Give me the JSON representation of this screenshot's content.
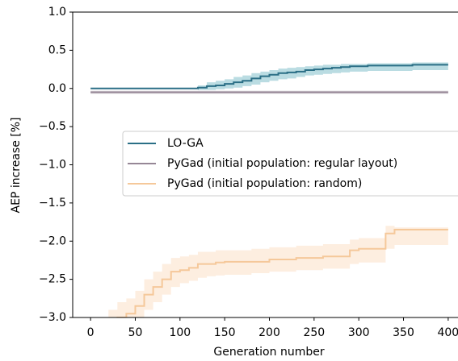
{
  "chart_data": {
    "type": "line",
    "x_label": "Generation number",
    "y_label": "AEP increase [%]",
    "xlim": [
      -20,
      420
    ],
    "ylim": [
      -3.0,
      1.0
    ],
    "xticks": [
      0,
      50,
      100,
      150,
      200,
      250,
      300,
      350,
      400
    ],
    "yticks": [
      {
        "value": 1.0,
        "label": "1.0"
      },
      {
        "value": 0.5,
        "label": "0.5"
      },
      {
        "value": 0.0,
        "label": "0.0"
      },
      {
        "value": -0.5,
        "label": "−0.5"
      },
      {
        "value": -1.0,
        "label": "−1.0"
      },
      {
        "value": -1.5,
        "label": "−1.5"
      },
      {
        "value": -2.0,
        "label": "−2.0"
      },
      {
        "value": -2.5,
        "label": "−2.5"
      },
      {
        "value": -3.0,
        "label": "−3.0"
      }
    ],
    "x": [
      0,
      10,
      20,
      30,
      40,
      50,
      60,
      70,
      80,
      90,
      100,
      110,
      120,
      130,
      140,
      150,
      160,
      170,
      180,
      190,
      200,
      210,
      220,
      230,
      240,
      250,
      260,
      270,
      280,
      290,
      300,
      310,
      320,
      330,
      340,
      350,
      360,
      370,
      380,
      390,
      400
    ],
    "series": [
      {
        "name": "LO-GA",
        "color": "#2b6f86",
        "band_color": "#8cc4cf",
        "values": [
          0,
          0,
          0,
          0,
          0,
          0,
          0,
          0,
          0,
          0,
          0,
          0,
          0.01,
          0.03,
          0.04,
          0.06,
          0.08,
          0.1,
          0.13,
          0.16,
          0.18,
          0.2,
          0.21,
          0.22,
          0.24,
          0.25,
          0.26,
          0.27,
          0.28,
          0.29,
          0.29,
          0.3,
          0.3,
          0.3,
          0.3,
          0.3,
          0.31,
          0.31,
          0.31,
          0.31,
          0.31
        ],
        "lower": [
          0,
          0,
          0,
          0,
          0,
          0,
          0,
          0,
          0,
          0,
          0,
          0,
          -0.02,
          -0.02,
          -0.01,
          0,
          0.01,
          0.03,
          0.05,
          0.08,
          0.1,
          0.12,
          0.13,
          0.15,
          0.17,
          0.18,
          0.19,
          0.2,
          0.21,
          0.22,
          0.22,
          0.23,
          0.23,
          0.23,
          0.23,
          0.23,
          0.24,
          0.24,
          0.24,
          0.24,
          0.24
        ],
        "upper": [
          0,
          0,
          0,
          0,
          0,
          0,
          0,
          0,
          0,
          0,
          0,
          0,
          0.04,
          0.08,
          0.1,
          0.12,
          0.15,
          0.17,
          0.2,
          0.22,
          0.24,
          0.26,
          0.27,
          0.28,
          0.29,
          0.3,
          0.31,
          0.31,
          0.32,
          0.32,
          0.32,
          0.33,
          0.33,
          0.33,
          0.33,
          0.33,
          0.34,
          0.34,
          0.34,
          0.34,
          0.34
        ]
      },
      {
        "name": "PyGad (initial population: regular layout)",
        "color": "#968796",
        "band_color": "#c9bfc9",
        "values": [
          -0.05,
          -0.05,
          -0.05,
          -0.05,
          -0.05,
          -0.05,
          -0.05,
          -0.05,
          -0.05,
          -0.05,
          -0.05,
          -0.05,
          -0.05,
          -0.05,
          -0.05,
          -0.05,
          -0.05,
          -0.05,
          -0.05,
          -0.05,
          -0.05,
          -0.05,
          -0.05,
          -0.05,
          -0.05,
          -0.05,
          -0.05,
          -0.05,
          -0.05,
          -0.05,
          -0.05,
          -0.05,
          -0.05,
          -0.05,
          -0.05,
          -0.05,
          -0.05,
          -0.05,
          -0.05,
          -0.05,
          -0.05
        ],
        "lower": [
          -0.07,
          -0.07,
          -0.07,
          -0.07,
          -0.07,
          -0.07,
          -0.07,
          -0.07,
          -0.07,
          -0.07,
          -0.07,
          -0.07,
          -0.07,
          -0.07,
          -0.07,
          -0.07,
          -0.07,
          -0.07,
          -0.07,
          -0.07,
          -0.07,
          -0.07,
          -0.07,
          -0.07,
          -0.07,
          -0.07,
          -0.07,
          -0.07,
          -0.07,
          -0.07,
          -0.07,
          -0.07,
          -0.07,
          -0.07,
          -0.07,
          -0.07,
          -0.07,
          -0.07,
          -0.07,
          -0.07,
          -0.07
        ],
        "upper": [
          -0.03,
          -0.03,
          -0.03,
          -0.03,
          -0.03,
          -0.03,
          -0.03,
          -0.03,
          -0.03,
          -0.03,
          -0.03,
          -0.03,
          -0.03,
          -0.03,
          -0.03,
          -0.03,
          -0.03,
          -0.03,
          -0.03,
          -0.03,
          -0.03,
          -0.03,
          -0.03,
          -0.03,
          -0.03,
          -0.03,
          -0.03,
          -0.03,
          -0.03,
          -0.03,
          -0.03,
          -0.03,
          -0.03,
          -0.03,
          -0.03,
          -0.03,
          -0.03,
          -0.03,
          -0.03,
          -0.03,
          -0.03
        ]
      },
      {
        "name": "PyGad (initial population: random)",
        "color": "#f5c89a",
        "band_color": "#fbe3cc",
        "values": [
          -3.3,
          -3.25,
          -3.1,
          -3.0,
          -2.95,
          -2.85,
          -2.7,
          -2.6,
          -2.5,
          -2.4,
          -2.38,
          -2.35,
          -2.3,
          -2.3,
          -2.28,
          -2.27,
          -2.27,
          -2.27,
          -2.27,
          -2.27,
          -2.24,
          -2.24,
          -2.24,
          -2.22,
          -2.22,
          -2.22,
          -2.2,
          -2.2,
          -2.2,
          -2.12,
          -2.1,
          -2.1,
          -2.1,
          -1.9,
          -1.85,
          -1.85,
          -1.85,
          -1.85,
          -1.85,
          -1.85,
          -1.85
        ],
        "lower": [
          -3.5,
          -3.45,
          -3.3,
          -3.2,
          -3.15,
          -3.05,
          -2.9,
          -2.8,
          -2.7,
          -2.6,
          -2.55,
          -2.52,
          -2.48,
          -2.46,
          -2.45,
          -2.44,
          -2.44,
          -2.44,
          -2.42,
          -2.42,
          -2.4,
          -2.4,
          -2.4,
          -2.38,
          -2.38,
          -2.38,
          -2.36,
          -2.36,
          -2.36,
          -2.3,
          -2.28,
          -2.28,
          -2.28,
          -2.1,
          -2.05,
          -2.05,
          -2.05,
          -2.05,
          -2.05,
          -2.05,
          -2.05
        ],
        "upper": [
          -3.1,
          -3.05,
          -2.9,
          -2.8,
          -2.75,
          -2.65,
          -2.5,
          -2.4,
          -2.3,
          -2.22,
          -2.2,
          -2.18,
          -2.14,
          -2.14,
          -2.12,
          -2.12,
          -2.12,
          -2.12,
          -2.1,
          -2.1,
          -2.08,
          -2.08,
          -2.08,
          -2.06,
          -2.06,
          -2.06,
          -2.04,
          -2.04,
          -2.04,
          -1.98,
          -1.96,
          -1.96,
          -1.96,
          -1.8,
          -1.82,
          -1.82,
          -1.82,
          -1.82,
          -1.82,
          -1.82,
          -1.82
        ]
      }
    ]
  }
}
